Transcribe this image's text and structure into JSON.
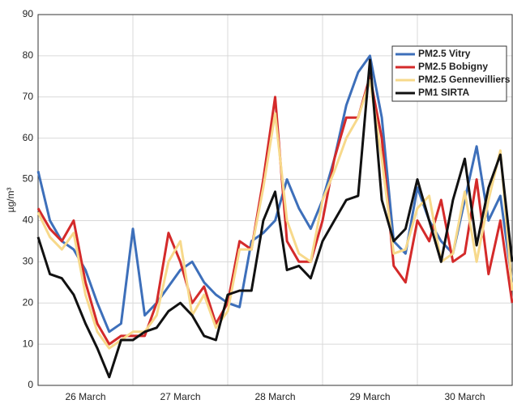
{
  "chart_data": {
    "type": "line",
    "y_label": "µg/m³",
    "categories": [
      null,
      null,
      null,
      null,
      "26 March",
      null,
      null,
      null,
      null,
      null,
      null,
      null,
      "27 March",
      null,
      null,
      null,
      null,
      null,
      null,
      null,
      "28 March",
      null,
      null,
      null,
      null,
      null,
      null,
      null,
      "29 March",
      null,
      null,
      null,
      null,
      null,
      null,
      null,
      "30 March",
      null,
      null,
      null,
      null
    ],
    "series": [
      {
        "name": "PM2.5 Vitry",
        "color": "#3d6fba",
        "values": [
          52,
          40,
          35,
          33,
          28,
          20,
          13,
          15,
          38,
          17,
          20,
          24,
          28,
          30,
          25,
          22,
          20,
          19,
          35,
          37,
          40,
          50,
          43,
          38,
          45,
          55,
          68,
          76,
          80,
          65,
          35,
          32,
          48,
          40,
          35,
          32,
          45,
          58,
          40,
          46,
          25
        ]
      },
      {
        "name": "PM2.5 Bobigny",
        "color": "#d42a2a",
        "values": [
          43,
          38,
          35,
          40,
          25,
          15,
          10,
          12,
          12,
          12,
          20,
          37,
          30,
          20,
          24,
          15,
          20,
          35,
          33,
          50,
          70,
          35,
          30,
          30,
          40,
          55,
          65,
          65,
          75,
          60,
          29,
          25,
          40,
          35,
          45,
          30,
          32,
          50,
          27,
          40,
          20
        ]
      },
      {
        "name": "PM2.5 Gennevilliers",
        "color": "#f7d98b",
        "values": [
          42,
          36,
          33,
          37,
          22,
          13,
          9,
          11,
          13,
          13,
          17,
          30,
          35,
          17,
          22,
          14,
          18,
          33,
          33,
          48,
          66,
          40,
          32,
          30,
          45,
          52,
          60,
          65,
          74,
          55,
          32,
          33,
          43,
          46,
          30,
          32,
          47,
          30,
          45,
          57,
          23
        ]
      },
      {
        "name": "PM1 SIRTA",
        "color": "#111111",
        "values": [
          36,
          27,
          26,
          22,
          15,
          9,
          2,
          11,
          11,
          13,
          14,
          18,
          20,
          17,
          12,
          11,
          22,
          23,
          23,
          40,
          47,
          28,
          29,
          26,
          35,
          40,
          45,
          46,
          79,
          45,
          35,
          38,
          50,
          40,
          30,
          45,
          55,
          34,
          48,
          56,
          30
        ]
      }
    ],
    "ylim": [
      0,
      90
    ],
    "yticks": [
      0,
      10,
      20,
      30,
      40,
      50,
      60,
      70,
      80,
      90
    ],
    "grid": true,
    "legend": "upper right"
  }
}
